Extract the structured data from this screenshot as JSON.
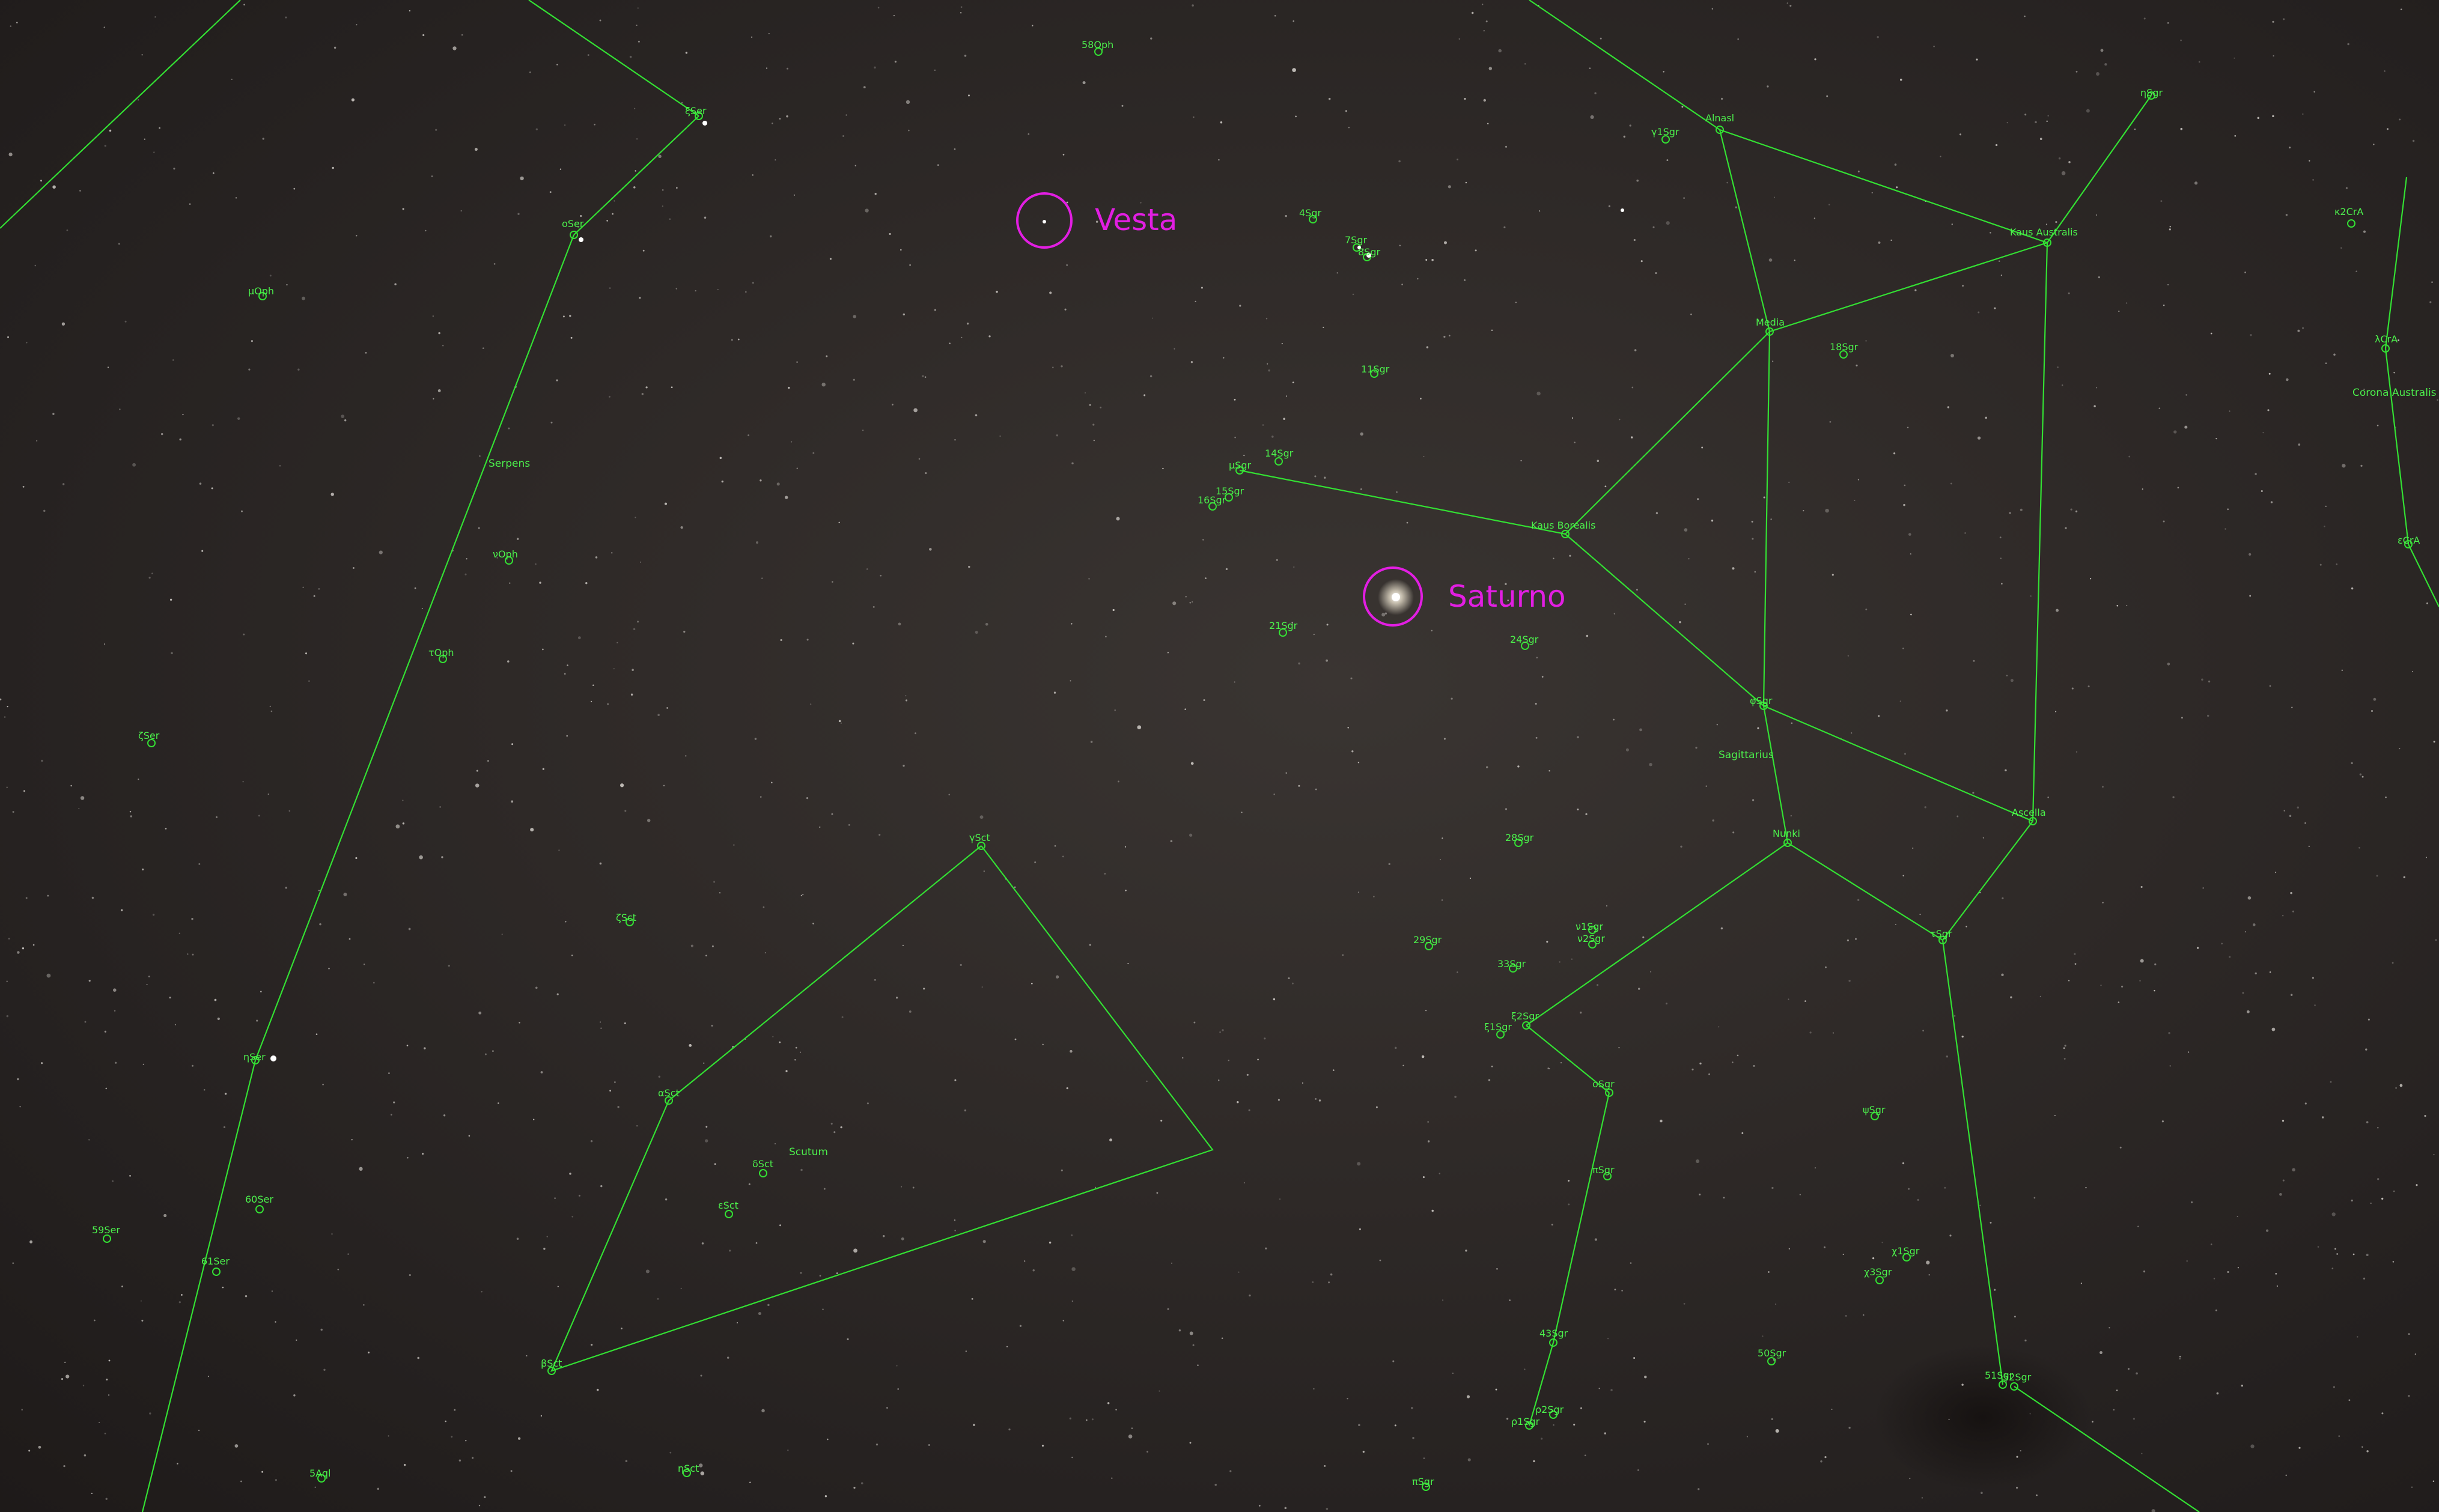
{
  "highlights": {
    "vesta": "Vesta",
    "saturno": "Saturno"
  },
  "constellations": {
    "serpens": "Serpens",
    "sagittarius": "Sagittarius",
    "scutum": "Scutum",
    "corona_australis": "Corona Australis"
  },
  "stars": {
    "s58oph": "58Oph",
    "xiSer": "ξSer",
    "oSer": "oSer",
    "muOph": "μOph",
    "nuOph": "νOph",
    "tauOph": "τOph",
    "zetaSer": "ζSer",
    "etaSer": "ηSer",
    "s60Ser": "60Ser",
    "s59Ser": "59Ser",
    "s61Ser": "61Ser",
    "s5Aql": "5Aql",
    "zetaSct": "ζSct",
    "gammaSct": "γSct",
    "alphaSct": "αSct",
    "deltaSct": "δSct",
    "epsSct": "εSct",
    "betaSct": "βSct",
    "etaSct": "ηSct",
    "alnasl": "Alnasl",
    "gamma1Sgr": "γ1Sgr",
    "s4Sgr": "4Sgr",
    "s7Sgr": "7Sgr",
    "s9Sgr": "9Sgr",
    "s11Sgr": "11Sgr",
    "s14Sgr": "14Sgr",
    "muSgr": "μSgr",
    "s15Sgr": "15Sgr",
    "s16Sgr": "16Sgr",
    "s21Sgr": "21Sgr",
    "s24Sgr": "24Sgr",
    "kausBorealis": "Kaus Borealis",
    "media": "Media",
    "s18Sgr": "18Sgr",
    "kausAustralis": "Kaus Australis",
    "etaSgr": "ηSgr",
    "phiSgr": "φSgr",
    "nunki": "Nunki",
    "ascella": "Ascella",
    "s28Sgr": "28Sgr",
    "tauSgr": "τSgr",
    "s29Sgr": "29Sgr",
    "nu1Sgr": "ν1Sgr",
    "nu2Sgr": "ν2Sgr",
    "s33Sgr": "33Sgr",
    "xi2Sgr": "ξ2Sgr",
    "xi1Sgr": "ξ1Sgr",
    "omicronSgr": "οSgr",
    "piSgr": "πSgr",
    "psiSgr": "ψSgr",
    "chi1Sgr": "χ1Sgr",
    "chi3Sgr": "χ3Sgr",
    "s43Sgr": "43Sgr",
    "s50Sgr": "50Sgr",
    "rho1Sgr": "ρ1Sgr",
    "rho2Sgr": "ρ2Sgr",
    "s51Sgr": "51Sgr",
    "s52Sgr": "52Sgr",
    "kappa2CrA": "κ2CrA",
    "lambdaCrA": "λCrA",
    "epsCrA": "εCrA",
    "s8Sgr": "8Sgr"
  },
  "colors": {
    "lines": "#33e033",
    "labels": "#4cf04c",
    "highlight": "#e21ee2"
  }
}
